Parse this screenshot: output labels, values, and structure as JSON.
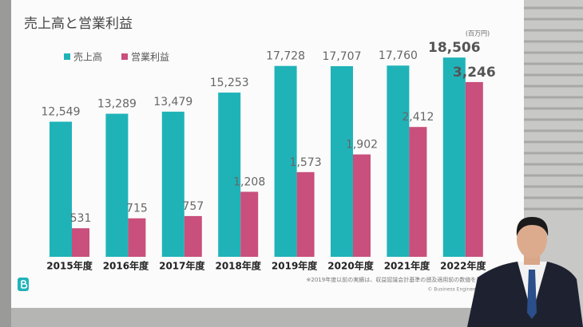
{
  "chart_data": {
    "type": "bar",
    "title": "売上高と営業利益",
    "unit_note": "(百万円)",
    "categories": [
      "2015年度",
      "2016年度",
      "2017年度",
      "2018年度",
      "2019年度",
      "2020年度",
      "2021年度",
      "2022年度"
    ],
    "series": [
      {
        "name": "売上高",
        "color": "#1fb3b8",
        "values": [
          12549,
          13289,
          13479,
          15253,
          17728,
          17707,
          17760,
          18506
        ],
        "value_labels": [
          "12,549",
          "13,289",
          "13,479",
          "15,253",
          "17,728",
          "17,707",
          "17,760",
          "18,506"
        ]
      },
      {
        "name": "営業利益",
        "color": "#c94f7c",
        "axis": "y2",
        "values": [
          531,
          715,
          757,
          1208,
          1573,
          1902,
          2412,
          3246
        ],
        "value_labels": [
          "531",
          "715",
          "757",
          "1,208",
          "1,573",
          "1,902",
          "2,412",
          "3,246"
        ]
      }
    ],
    "ylim": [
      0,
      20000
    ],
    "y2lim": [
      0,
      4000
    ],
    "legend": "top-left",
    "footnote": "※2019年度以前の実績は、収益認識会計基準の遡及適用前の数値を表示しています",
    "copyright": "© Business Engineering Corporation"
  }
}
